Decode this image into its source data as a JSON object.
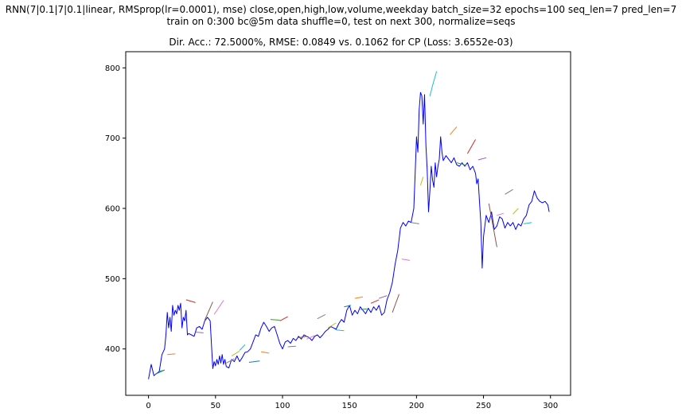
{
  "chart_data": {
    "type": "line",
    "title_line1": "RNN(7|0.1|7|0.1|linear, RMSprop(lr=0.0001), mse) close,open,high,low,volume,weekday batch_size=32 epochs=100 seq_len=7 pred_len=7",
    "title_line2": "train on 0:300 bc@5m data shuffle=0, test on next 300, normalize=seqs",
    "subtitle": "Dir. Acc.: 72.5000%, RMSE: 0.0849 vs. 0.1062 for CP (Loss: 3.6552e-03)",
    "xlabel": "",
    "ylabel": "",
    "xlim": [
      -17,
      315
    ],
    "ylim": [
      334,
      823
    ],
    "xticks": [
      0,
      50,
      100,
      150,
      200,
      250,
      300
    ],
    "yticks": [
      400,
      500,
      600,
      700,
      800
    ],
    "grid": false,
    "actual": {
      "color": "#0000ff",
      "points": [
        [
          0,
          357
        ],
        [
          2,
          378
        ],
        [
          4,
          362
        ],
        [
          6,
          365
        ],
        [
          8,
          368
        ],
        [
          10,
          392
        ],
        [
          12,
          400
        ],
        [
          13,
          420
        ],
        [
          14,
          452
        ],
        [
          15,
          430
        ],
        [
          16,
          445
        ],
        [
          17,
          425
        ],
        [
          18,
          462
        ],
        [
          19,
          448
        ],
        [
          20,
          455
        ],
        [
          21,
          450
        ],
        [
          22,
          462
        ],
        [
          23,
          455
        ],
        [
          24,
          465
        ],
        [
          25,
          430
        ],
        [
          26,
          445
        ],
        [
          27,
          440
        ],
        [
          28,
          455
        ],
        [
          29,
          420
        ],
        [
          30,
          422
        ],
        [
          32,
          420
        ],
        [
          34,
          418
        ],
        [
          36,
          430
        ],
        [
          38,
          432
        ],
        [
          40,
          428
        ],
        [
          42,
          440
        ],
        [
          44,
          445
        ],
        [
          46,
          440
        ],
        [
          47,
          405
        ],
        [
          48,
          372
        ],
        [
          49,
          382
        ],
        [
          50,
          376
        ],
        [
          51,
          385
        ],
        [
          52,
          378
        ],
        [
          53,
          390
        ],
        [
          54,
          380
        ],
        [
          55,
          392
        ],
        [
          56,
          378
        ],
        [
          57,
          385
        ],
        [
          58,
          375
        ],
        [
          60,
          373
        ],
        [
          62,
          385
        ],
        [
          64,
          382
        ],
        [
          66,
          390
        ],
        [
          68,
          382
        ],
        [
          70,
          388
        ],
        [
          72,
          395
        ],
        [
          74,
          396
        ],
        [
          76,
          400
        ],
        [
          78,
          410
        ],
        [
          80,
          420
        ],
        [
          82,
          418
        ],
        [
          84,
          430
        ],
        [
          86,
          438
        ],
        [
          88,
          432
        ],
        [
          90,
          425
        ],
        [
          92,
          430
        ],
        [
          94,
          432
        ],
        [
          96,
          420
        ],
        [
          98,
          408
        ],
        [
          100,
          400
        ],
        [
          102,
          410
        ],
        [
          104,
          412
        ],
        [
          106,
          408
        ],
        [
          108,
          415
        ],
        [
          110,
          412
        ],
        [
          112,
          418
        ],
        [
          114,
          414
        ],
        [
          116,
          420
        ],
        [
          118,
          418
        ],
        [
          120,
          416
        ],
        [
          122,
          412
        ],
        [
          124,
          418
        ],
        [
          126,
          420
        ],
        [
          128,
          416
        ],
        [
          130,
          420
        ],
        [
          132,
          425
        ],
        [
          134,
          428
        ],
        [
          136,
          432
        ],
        [
          138,
          430
        ],
        [
          140,
          428
        ],
        [
          142,
          436
        ],
        [
          144,
          442
        ],
        [
          146,
          438
        ],
        [
          148,
          455
        ],
        [
          150,
          462
        ],
        [
          152,
          448
        ],
        [
          154,
          455
        ],
        [
          156,
          450
        ],
        [
          158,
          460
        ],
        [
          160,
          455
        ],
        [
          162,
          450
        ],
        [
          164,
          458
        ],
        [
          166,
          452
        ],
        [
          168,
          460
        ],
        [
          170,
          455
        ],
        [
          172,
          462
        ],
        [
          174,
          448
        ],
        [
          176,
          452
        ],
        [
          178,
          470
        ],
        [
          180,
          480
        ],
        [
          182,
          495
        ],
        [
          184,
          520
        ],
        [
          186,
          540
        ],
        [
          188,
          572
        ],
        [
          190,
          580
        ],
        [
          192,
          575
        ],
        [
          194,
          582
        ],
        [
          196,
          580
        ],
        [
          198,
          600
        ],
        [
          199,
          650
        ],
        [
          200,
          702
        ],
        [
          201,
          680
        ],
        [
          202,
          740
        ],
        [
          203,
          765
        ],
        [
          204,
          760
        ],
        [
          205,
          720
        ],
        [
          206,
          762
        ],
        [
          207,
          690
        ],
        [
          208,
          655
        ],
        [
          209,
          595
        ],
        [
          210,
          625
        ],
        [
          211,
          660
        ],
        [
          212,
          640
        ],
        [
          213,
          630
        ],
        [
          214,
          665
        ],
        [
          215,
          645
        ],
        [
          216,
          660
        ],
        [
          217,
          670
        ],
        [
          218,
          702
        ],
        [
          219,
          680
        ],
        [
          220,
          668
        ],
        [
          222,
          675
        ],
        [
          224,
          670
        ],
        [
          226,
          665
        ],
        [
          228,
          672
        ],
        [
          230,
          662
        ],
        [
          232,
          660
        ],
        [
          234,
          665
        ],
        [
          236,
          660
        ],
        [
          238,
          665
        ],
        [
          240,
          655
        ],
        [
          242,
          660
        ],
        [
          244,
          650
        ],
        [
          245,
          635
        ],
        [
          246,
          642
        ],
        [
          247,
          610
        ],
        [
          248,
          580
        ],
        [
          249,
          515
        ],
        [
          250,
          560
        ],
        [
          252,
          590
        ],
        [
          254,
          580
        ],
        [
          256,
          595
        ],
        [
          258,
          570
        ],
        [
          260,
          575
        ],
        [
          262,
          588
        ],
        [
          264,
          585
        ],
        [
          266,
          572
        ],
        [
          268,
          580
        ],
        [
          270,
          575
        ],
        [
          272,
          580
        ],
        [
          274,
          570
        ],
        [
          276,
          578
        ],
        [
          278,
          575
        ],
        [
          280,
          585
        ],
        [
          282,
          590
        ],
        [
          284,
          605
        ],
        [
          286,
          610
        ],
        [
          288,
          625
        ],
        [
          290,
          615
        ],
        [
          292,
          610
        ],
        [
          294,
          608
        ],
        [
          296,
          610
        ],
        [
          298,
          605
        ],
        [
          299,
          595
        ]
      ]
    },
    "predictions": [
      {
        "color": "#1f77b4",
        "points": [
          [
            5,
            364
          ],
          [
            12,
            370
          ]
        ]
      },
      {
        "color": "#2ca02c",
        "points": [
          [
            8,
            368
          ],
          [
            12,
            370
          ]
        ]
      },
      {
        "color": "#ff7f0e",
        "points": [
          [
            14,
            392
          ],
          [
            20,
            393
          ]
        ]
      },
      {
        "color": "#d62728",
        "points": [
          [
            28,
            470
          ],
          [
            35,
            466
          ]
        ]
      },
      {
        "color": "#9467bd",
        "points": [
          [
            35,
            424
          ],
          [
            41,
            423
          ]
        ]
      },
      {
        "color": "#8c564b",
        "points": [
          [
            42,
            441
          ],
          [
            48,
            467
          ]
        ]
      },
      {
        "color": "#e377c2",
        "points": [
          [
            49,
            449
          ],
          [
            56,
            469
          ]
        ]
      },
      {
        "color": "#7f7f7f",
        "points": [
          [
            58,
            380
          ],
          [
            64,
            386
          ]
        ]
      },
      {
        "color": "#bcbd22",
        "points": [
          [
            62,
            390
          ],
          [
            68,
            397
          ]
        ]
      },
      {
        "color": "#17becf",
        "points": [
          [
            68,
            398
          ],
          [
            72,
            406
          ]
        ]
      },
      {
        "color": "#1f77b4",
        "points": [
          [
            75,
            381
          ],
          [
            83,
            383
          ]
        ]
      },
      {
        "color": "#ff7f0e",
        "points": [
          [
            84,
            396
          ],
          [
            90,
            394
          ]
        ]
      },
      {
        "color": "#2ca02c",
        "points": [
          [
            91,
            442
          ],
          [
            98,
            441
          ]
        ]
      },
      {
        "color": "#d62728",
        "points": [
          [
            98,
            440
          ],
          [
            104,
            446
          ]
        ]
      },
      {
        "color": "#9467bd",
        "points": [
          [
            104,
            403
          ],
          [
            110,
            404
          ]
        ]
      },
      {
        "color": "#8c564b",
        "points": [
          [
            112,
            416
          ],
          [
            118,
            418
          ]
        ]
      },
      {
        "color": "#e377c2",
        "points": [
          [
            118,
            414
          ],
          [
            124,
            419
          ]
        ]
      },
      {
        "color": "#7f7f7f",
        "points": [
          [
            126,
            443
          ],
          [
            132,
            449
          ]
        ]
      },
      {
        "color": "#bcbd22",
        "points": [
          [
            134,
            430
          ],
          [
            140,
            437
          ]
        ]
      },
      {
        "color": "#17becf",
        "points": [
          [
            140,
            427
          ],
          [
            146,
            426
          ]
        ]
      },
      {
        "color": "#1f77b4",
        "points": [
          [
            146,
            460
          ],
          [
            151,
            462
          ]
        ]
      },
      {
        "color": "#ff7f0e",
        "points": [
          [
            154,
            472
          ],
          [
            160,
            474
          ]
        ]
      },
      {
        "color": "#2ca02c",
        "points": [
          [
            158,
            456
          ],
          [
            163,
            457
          ]
        ]
      },
      {
        "color": "#d62728",
        "points": [
          [
            166,
            465
          ],
          [
            172,
            470
          ]
        ]
      },
      {
        "color": "#9467bd",
        "points": [
          [
            172,
            472
          ],
          [
            178,
            476
          ]
        ]
      },
      {
        "color": "#8c564b",
        "points": [
          [
            182,
            452
          ],
          [
            187,
            478
          ]
        ]
      },
      {
        "color": "#e377c2",
        "points": [
          [
            189,
            528
          ],
          [
            195,
            526
          ]
        ]
      },
      {
        "color": "#7f7f7f",
        "points": [
          [
            196,
            580
          ],
          [
            202,
            578
          ]
        ]
      },
      {
        "color": "#bcbd22",
        "points": [
          [
            203,
            633
          ],
          [
            205,
            645
          ]
        ]
      },
      {
        "color": "#17becf",
        "points": [
          [
            210,
            760
          ],
          [
            212,
            775
          ],
          [
            215,
            795
          ]
        ]
      },
      {
        "color": "#ff7f0e",
        "points": [
          [
            225,
            705
          ],
          [
            230,
            716
          ]
        ]
      },
      {
        "color": "#2ca02c",
        "points": [
          [
            230,
            665
          ],
          [
            236,
            662
          ]
        ]
      },
      {
        "color": "#d62728",
        "points": [
          [
            238,
            678
          ],
          [
            244,
            698
          ]
        ]
      },
      {
        "color": "#9467bd",
        "points": [
          [
            246,
            669
          ],
          [
            252,
            672
          ]
        ]
      },
      {
        "color": "#8c564b",
        "points": [
          [
            254,
            607
          ],
          [
            260,
            545
          ]
        ]
      },
      {
        "color": "#e377c2",
        "points": [
          [
            260,
            590
          ],
          [
            265,
            593
          ]
        ]
      },
      {
        "color": "#7f7f7f",
        "points": [
          [
            266,
            620
          ],
          [
            272,
            627
          ]
        ]
      },
      {
        "color": "#bcbd22",
        "points": [
          [
            272,
            592
          ],
          [
            276,
            600
          ]
        ]
      },
      {
        "color": "#17becf",
        "points": [
          [
            280,
            578
          ],
          [
            286,
            580
          ]
        ]
      }
    ]
  }
}
